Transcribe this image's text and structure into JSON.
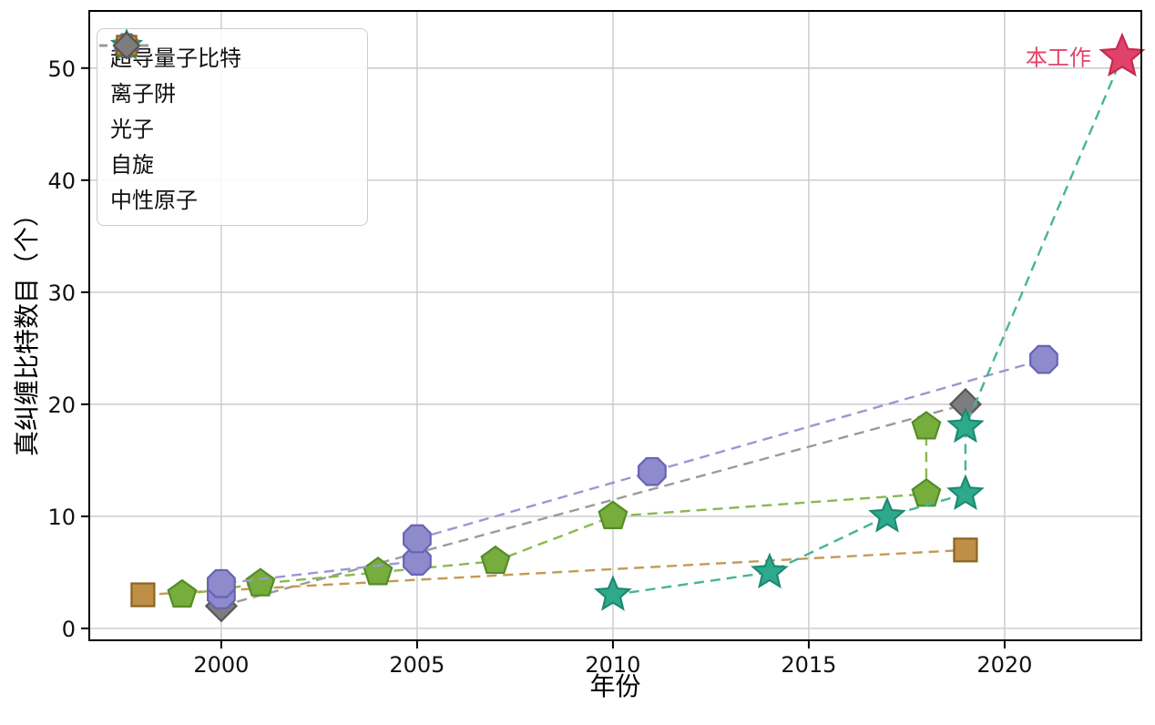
{
  "chart_data": {
    "type": "line",
    "title": "",
    "xlabel": "年份",
    "ylabel": "真纠缠比特数目（个）",
    "xlim": [
      1996.63,
      2023.49
    ],
    "ylim": [
      -1.06,
      55.1
    ],
    "xticks": [
      2000,
      2005,
      2010,
      2015,
      2020
    ],
    "yticks": [
      0,
      10,
      20,
      30,
      40,
      50
    ],
    "grid": true,
    "legend_position": "upper-left",
    "series": [
      {
        "id": "superconducting-qubits",
        "name": "超导量子比特",
        "marker": "star",
        "line_color": "#45b597",
        "fill": "#2fa98c",
        "edge": "#1d8a71",
        "dashed": true,
        "points": [
          [
            2010,
            3
          ],
          [
            2014,
            5
          ],
          [
            2017,
            10
          ],
          [
            2019,
            12
          ],
          [
            2019,
            18
          ],
          [
            2023,
            51
          ]
        ],
        "skip_last_marker": true
      },
      {
        "id": "ion-trap",
        "name": "离子阱",
        "marker": "octagon",
        "line_color": "#9a97d1",
        "fill": "#8e8bcd",
        "edge": "#6763b5",
        "dashed": true,
        "points": [
          [
            2000,
            3
          ],
          [
            2000,
            4
          ],
          [
            2005,
            6
          ],
          [
            2005,
            8
          ],
          [
            2011,
            14
          ],
          [
            2021,
            24
          ]
        ]
      },
      {
        "id": "photon",
        "name": "光子",
        "marker": "pentagon",
        "line_color": "#8ab84e",
        "fill": "#76ad3d",
        "edge": "#548c28",
        "dashed": true,
        "points": [
          [
            1999,
            3
          ],
          [
            2001,
            4
          ],
          [
            2004,
            5
          ],
          [
            2007,
            6
          ],
          [
            2010,
            10
          ],
          [
            2018,
            12
          ],
          [
            2018,
            18
          ]
        ]
      },
      {
        "id": "spin",
        "name": "自旋",
        "marker": "square",
        "line_color": "#c49a52",
        "fill": "#c08f47",
        "edge": "#8a6420",
        "dashed": true,
        "points": [
          [
            1998,
            3
          ],
          [
            2019,
            7
          ]
        ]
      },
      {
        "id": "neutral-atom",
        "name": "中性原子",
        "marker": "diamond",
        "line_color": "#9a9a9a",
        "fill": "#7d7d7d",
        "edge": "#565656",
        "dashed": true,
        "points": [
          [
            2000,
            2
          ],
          [
            2019,
            20
          ]
        ]
      }
    ],
    "annotation": {
      "text": "本工作",
      "x": 2023,
      "y": 51,
      "marker": "star",
      "fill": "#e0436a",
      "edge": "#c62a50",
      "text_color": "#e0436a"
    },
    "colors": {
      "grid": "#c9c9c9",
      "spine": "#000000",
      "background": "#ffffff",
      "tick_label": "#111111"
    }
  }
}
